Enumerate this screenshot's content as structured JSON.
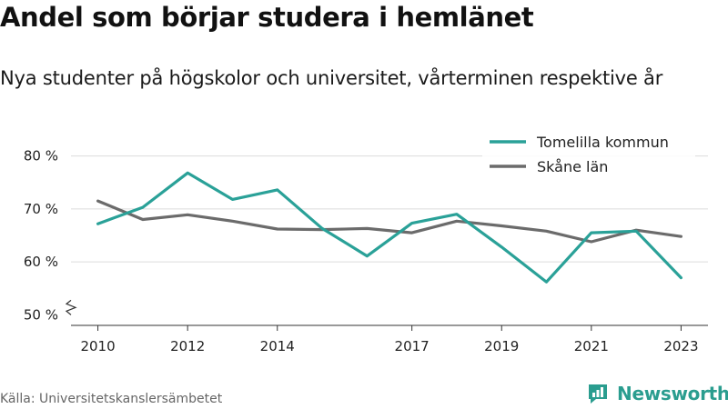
{
  "title": "Andel som börjar studera i hemlänet",
  "subtitle": "Nya studenter på högskolor och universitet, vårterminen respektive år",
  "source": "Källa: Universitetskanslersämbetet",
  "brand": "Newsworthy",
  "chart_data": {
    "type": "line",
    "x": [
      2010,
      2011,
      2012,
      2013,
      2014,
      2015,
      2016,
      2017,
      2018,
      2019,
      2020,
      2021,
      2022,
      2023
    ],
    "x_tick_labels": [
      "2010",
      "2012",
      "2014",
      "2017",
      "2019",
      "2021",
      "2023"
    ],
    "x_tick_values": [
      2010,
      2012,
      2014,
      2017,
      2019,
      2021,
      2023
    ],
    "y_tick_labels": [
      "50 %",
      "60 %",
      "70 %",
      "80 %"
    ],
    "y_tick_values": [
      50,
      60,
      70,
      80
    ],
    "ylim": [
      48,
      82
    ],
    "xlim": [
      2009.4,
      2023.6
    ],
    "grid": true,
    "y_axis_break": true,
    "legend_position": "top-right",
    "series": [
      {
        "name": "Tomelilla kommun",
        "color": "#2aa198",
        "values": [
          67.2,
          70.3,
          76.8,
          71.8,
          73.6,
          66.3,
          61.1,
          67.3,
          69.0,
          62.8,
          56.2,
          65.5,
          65.8,
          57.0
        ]
      },
      {
        "name": "Skåne län",
        "color": "#6b6b6b",
        "values": [
          71.5,
          68.0,
          68.9,
          67.7,
          66.2,
          66.1,
          66.3,
          65.5,
          67.7,
          66.8,
          65.8,
          63.8,
          66.0,
          64.8
        ]
      }
    ]
  }
}
